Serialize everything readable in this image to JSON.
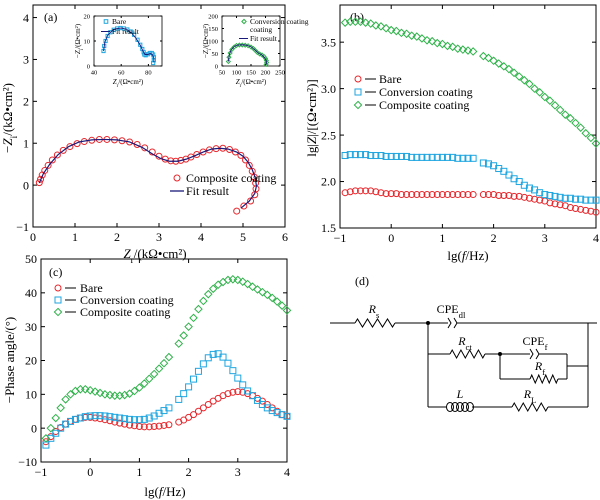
{
  "figure": {
    "colors": {
      "bare": "#e8262b",
      "conversion": "#1ea6e0",
      "composite": "#2fb24a",
      "fit": "#1a1a7a",
      "axis": "#000000"
    }
  },
  "chart_data": [
    {
      "panel": "(a)",
      "type": "scatter",
      "title": "",
      "xlabel": "Z_r/(kΩ•cm²)",
      "ylabel": "−Z_i/(kΩ•cm²)",
      "xlim": [
        0,
        6
      ],
      "ylim": [
        -1,
        4.3
      ],
      "xticks": [
        "0",
        "1",
        "2",
        "3",
        "4",
        "5",
        "6"
      ],
      "yticks": [
        "−1",
        "0",
        "1",
        "2",
        "3",
        "4"
      ],
      "legend_position": "bottom-right",
      "series": [
        {
          "name": "Composite coating",
          "marker": "circle",
          "x": [
            0.15,
            0.18,
            0.22,
            0.28,
            0.36,
            0.46,
            0.58,
            0.72,
            0.88,
            1.05,
            1.22,
            1.4,
            1.58,
            1.76,
            1.94,
            2.12,
            2.3,
            2.48,
            2.66,
            2.84,
            3.0,
            3.15,
            3.28,
            3.4,
            3.52,
            3.64,
            3.76,
            3.9,
            4.05,
            4.2,
            4.36,
            4.52,
            4.68,
            4.82,
            4.95,
            5.06,
            5.15,
            5.22,
            5.27,
            5.3,
            5.31,
            5.28,
            5.18,
            5.02,
            4.85
          ],
          "y": [
            0.06,
            0.14,
            0.24,
            0.35,
            0.47,
            0.6,
            0.72,
            0.83,
            0.92,
            0.99,
            1.04,
            1.07,
            1.09,
            1.09,
            1.08,
            1.06,
            1.03,
            0.97,
            0.89,
            0.79,
            0.69,
            0.62,
            0.58,
            0.57,
            0.59,
            0.62,
            0.67,
            0.73,
            0.79,
            0.84,
            0.87,
            0.88,
            0.85,
            0.79,
            0.71,
            0.6,
            0.47,
            0.33,
            0.19,
            0.05,
            -0.09,
            -0.23,
            -0.38,
            -0.5,
            -0.62
          ]
        },
        {
          "name": "Fit result",
          "style": "line",
          "x": [
            0.15,
            0.25,
            0.4,
            0.6,
            0.85,
            1.1,
            1.4,
            1.7,
            2.0,
            2.3,
            2.6,
            2.85,
            3.05,
            3.25,
            3.45,
            3.65,
            3.85,
            4.05,
            4.25,
            4.45,
            4.65,
            4.85,
            5.0,
            5.12,
            5.22,
            5.29,
            5.32,
            5.28,
            5.15,
            4.95
          ],
          "y": [
            0.05,
            0.28,
            0.5,
            0.73,
            0.92,
            1.03,
            1.08,
            1.09,
            1.08,
            1.03,
            0.9,
            0.74,
            0.63,
            0.57,
            0.57,
            0.62,
            0.7,
            0.79,
            0.86,
            0.88,
            0.86,
            0.79,
            0.69,
            0.55,
            0.37,
            0.18,
            -0.02,
            -0.2,
            -0.38,
            -0.55
          ]
        }
      ],
      "insets": [
        {
          "type": "scatter",
          "xlabel": "Z_r/(Ω•cm²)",
          "ylabel": "−Z_i/(Ω•cm²)",
          "xlim": [
            40,
            90
          ],
          "ylim": [
            0,
            20
          ],
          "xticks": [
            "40",
            "60",
            "80"
          ],
          "yticks": [
            "0",
            "10",
            "20"
          ],
          "series": [
            {
              "name": "Bare",
              "marker": "square",
              "color_key": "conversion",
              "x": [
                47,
                47.5,
                48.5,
                50,
                52,
                54.5,
                57,
                59.5,
                62,
                64.5,
                67,
                69.5,
                72,
                74,
                75.5,
                76.5,
                77,
                78,
                79.5,
                81,
                82.5,
                83.5,
                84,
                84,
                83.5
              ],
              "y": [
                6,
                8,
                10,
                12,
                13.5,
                14.5,
                15,
                15.2,
                15,
                14.6,
                13.8,
                12.5,
                10.5,
                8.5,
                6.8,
                5.5,
                4.6,
                4.3,
                4.7,
                5.2,
                5.2,
                4.6,
                3.5,
                2.3,
                1.2
              ]
            },
            {
              "name": "Fit result",
              "style": "line",
              "x": [
                47,
                48,
                50,
                53,
                56,
                60,
                64,
                68,
                71,
                74,
                76,
                77.5,
                79.5,
                81.5,
                83,
                84,
                84
              ],
              "y": [
                6,
                9.5,
                12.2,
                14,
                14.9,
                15.2,
                14.7,
                13,
                11,
                8.3,
                6,
                4.6,
                4.6,
                5,
                4.5,
                3.2,
                1.5
              ]
            }
          ]
        },
        {
          "type": "scatter",
          "xlabel": "Z_r/(Ω•cm²)",
          "ylabel": "−Z_i/(Ω•cm²)",
          "xlim": [
            50,
            250
          ],
          "ylim": [
            0,
            200
          ],
          "xticks": [
            "50",
            "100",
            "150",
            "200",
            "250"
          ],
          "yticks": [
            "0",
            "50",
            "100",
            "150",
            "200"
          ],
          "legend_position": "top-right",
          "series": [
            {
              "name": "Conversion coating",
              "marker": "diamond",
              "color_key": "composite",
              "x": [
                72,
                74,
                78,
                84,
                92,
                100,
                110,
                120,
                130,
                140,
                150,
                158,
                165,
                172,
                180,
                188,
                195,
                200,
                203,
                204,
                202
              ],
              "y": [
                18,
                35,
                52,
                66,
                76,
                82,
                84,
                84,
                83,
                81,
                76,
                70,
                62,
                54,
                48,
                44,
                38,
                30,
                22,
                14,
                6
              ]
            },
            {
              "name": "Fit result",
              "style": "line",
              "x": [
                72,
                75,
                82,
                92,
                105,
                120,
                135,
                150,
                163,
                175,
                188,
                198,
                203,
                203
              ],
              "y": [
                18,
                45,
                65,
                78,
                84,
                85,
                83,
                77,
                65,
                52,
                44,
                32,
                20,
                6
              ]
            }
          ]
        }
      ]
    },
    {
      "panel": "(b)",
      "type": "scatter",
      "title": "",
      "xlabel": "lg(f/Hz)",
      "ylabel": "lg|Z|/[(Ω•cm²)]",
      "xlim": [
        -1,
        4
      ],
      "ylim": [
        1.5,
        3.9
      ],
      "xticks": [
        "−1",
        "0",
        "1",
        "2",
        "3",
        "4"
      ],
      "yticks": [
        "1.5",
        "2.0",
        "2.5",
        "3.0",
        "3.5"
      ],
      "legend_position": "left-middle",
      "x": [
        -0.9,
        -0.8,
        -0.7,
        -0.6,
        -0.5,
        -0.4,
        -0.3,
        -0.2,
        -0.1,
        0.0,
        0.1,
        0.2,
        0.3,
        0.4,
        0.5,
        0.6,
        0.7,
        0.8,
        0.9,
        1.0,
        1.1,
        1.2,
        1.3,
        1.4,
        1.5,
        1.6,
        1.8,
        1.9,
        2.0,
        2.1,
        2.2,
        2.3,
        2.4,
        2.5,
        2.6,
        2.7,
        2.8,
        2.9,
        3.0,
        3.1,
        3.2,
        3.3,
        3.4,
        3.5,
        3.6,
        3.7,
        3.8,
        3.9,
        4.0
      ],
      "series": [
        {
          "name": "Bare",
          "marker": "circle",
          "values": [
            1.88,
            1.89,
            1.9,
            1.9,
            1.9,
            1.9,
            1.89,
            1.88,
            1.87,
            1.87,
            1.87,
            1.86,
            1.86,
            1.86,
            1.86,
            1.86,
            1.86,
            1.86,
            1.86,
            1.86,
            1.86,
            1.86,
            1.86,
            1.86,
            1.86,
            1.86,
            1.86,
            1.86,
            1.86,
            1.85,
            1.85,
            1.85,
            1.84,
            1.84,
            1.83,
            1.82,
            1.81,
            1.8,
            1.79,
            1.77,
            1.76,
            1.75,
            1.74,
            1.72,
            1.71,
            1.7,
            1.69,
            1.68,
            1.67
          ]
        },
        {
          "name": "Conversion coating",
          "marker": "square",
          "values": [
            2.28,
            2.29,
            2.29,
            2.29,
            2.29,
            2.28,
            2.28,
            2.28,
            2.27,
            2.27,
            2.27,
            2.27,
            2.27,
            2.26,
            2.26,
            2.26,
            2.26,
            2.26,
            2.26,
            2.26,
            2.26,
            2.26,
            2.25,
            2.25,
            2.25,
            2.25,
            2.2,
            2.19,
            2.17,
            2.14,
            2.11,
            2.07,
            2.03,
            2.0,
            1.96,
            1.93,
            1.91,
            1.88,
            1.86,
            1.85,
            1.84,
            1.83,
            1.82,
            1.82,
            1.81,
            1.81,
            1.8,
            1.8,
            1.8
          ]
        },
        {
          "name": "Composite coating",
          "marker": "diamond",
          "values": [
            3.71,
            3.72,
            3.72,
            3.72,
            3.71,
            3.7,
            3.68,
            3.67,
            3.65,
            3.63,
            3.62,
            3.6,
            3.59,
            3.57,
            3.56,
            3.54,
            3.52,
            3.51,
            3.49,
            3.48,
            3.46,
            3.45,
            3.43,
            3.42,
            3.41,
            3.4,
            3.35,
            3.33,
            3.3,
            3.27,
            3.24,
            3.21,
            3.17,
            3.13,
            3.09,
            3.05,
            3.0,
            2.96,
            2.91,
            2.87,
            2.82,
            2.77,
            2.72,
            2.68,
            2.63,
            2.58,
            2.52,
            2.47,
            2.41
          ]
        }
      ]
    },
    {
      "panel": "(c)",
      "type": "scatter",
      "title": "",
      "xlabel": "lg(f/Hz)",
      "ylabel": "−Phase angle/(°)",
      "xlim": [
        -1,
        4
      ],
      "ylim": [
        -10,
        50
      ],
      "xticks": [
        "−1",
        "0",
        "1",
        "2",
        "3",
        "4"
      ],
      "yticks": [
        "−10",
        "0",
        "10",
        "20",
        "30",
        "40",
        "50"
      ],
      "legend_position": "top-left",
      "x": [
        -0.9,
        -0.8,
        -0.7,
        -0.6,
        -0.5,
        -0.4,
        -0.3,
        -0.2,
        -0.1,
        0.0,
        0.1,
        0.2,
        0.3,
        0.4,
        0.5,
        0.6,
        0.7,
        0.8,
        0.9,
        1.0,
        1.1,
        1.2,
        1.3,
        1.4,
        1.5,
        1.6,
        1.8,
        1.9,
        2.0,
        2.1,
        2.2,
        2.3,
        2.4,
        2.5,
        2.6,
        2.7,
        2.8,
        2.9,
        3.0,
        3.1,
        3.2,
        3.3,
        3.4,
        3.5,
        3.6,
        3.7,
        3.8,
        3.9,
        4.0
      ],
      "series": [
        {
          "name": "Bare",
          "marker": "circle",
          "values": [
            -4,
            -2.5,
            -1,
            0.2,
            1.2,
            2.0,
            2.6,
            3.0,
            3.2,
            3.2,
            3.0,
            2.8,
            2.5,
            2.2,
            1.8,
            1.5,
            1.2,
            0.9,
            0.7,
            0.5,
            0.4,
            0.4,
            0.5,
            0.6,
            0.8,
            1.0,
            1.8,
            2.4,
            3.2,
            4.0,
            5.0,
            6.0,
            7.0,
            8.0,
            8.8,
            9.6,
            10.2,
            10.6,
            10.8,
            10.6,
            10.2,
            9.6,
            8.8,
            8.0,
            7.0,
            6.0,
            5.0,
            4.0,
            3.5
          ]
        },
        {
          "name": "Conversion coating",
          "marker": "square",
          "values": [
            -5,
            -3,
            -1.5,
            0,
            1.2,
            2.0,
            2.6,
            3.0,
            3.4,
            3.6,
            3.7,
            3.7,
            3.6,
            3.4,
            3.2,
            3.0,
            2.8,
            2.6,
            2.5,
            2.5,
            2.6,
            3.0,
            3.6,
            4.4,
            5.2,
            6.0,
            8.5,
            10.2,
            12.2,
            14.5,
            16.8,
            19.0,
            20.8,
            21.8,
            22.0,
            21.0,
            19.2,
            17.0,
            14.8,
            12.8,
            11.0,
            9.6,
            8.2,
            7.0,
            6.0,
            5.2,
            4.6,
            4.0,
            3.5
          ]
        },
        {
          "name": "Composite coating",
          "marker": "diamond",
          "values": [
            -3,
            0,
            3,
            6,
            8.5,
            10,
            11,
            11.5,
            11.5,
            11.2,
            10.8,
            10.4,
            10.0,
            9.8,
            9.6,
            9.6,
            9.8,
            10.2,
            11.0,
            12.0,
            13.2,
            14.6,
            16.0,
            17.6,
            19.2,
            21.0,
            25.0,
            27.4,
            30.0,
            32.6,
            35.2,
            37.6,
            39.6,
            41.2,
            42.4,
            43.2,
            43.8,
            44.0,
            43.8,
            43.3,
            42.6,
            41.8,
            41.0,
            40.2,
            39.4,
            38.5,
            37.4,
            36.2,
            34.8
          ]
        }
      ]
    },
    {
      "panel": "(d)",
      "type": "diagram",
      "labels": {
        "rs": "R",
        "rs_sub": "s",
        "cpe_dl": "CPE",
        "cpe_dl_sub": "dl",
        "rct": "R",
        "rct_sub": "ct",
        "cpe_f": "CPE",
        "cpe_f_sub": "f",
        "rf": "R",
        "rf_sub": "f",
        "l": "L",
        "rl": "R",
        "rl_sub": "L"
      }
    }
  ]
}
